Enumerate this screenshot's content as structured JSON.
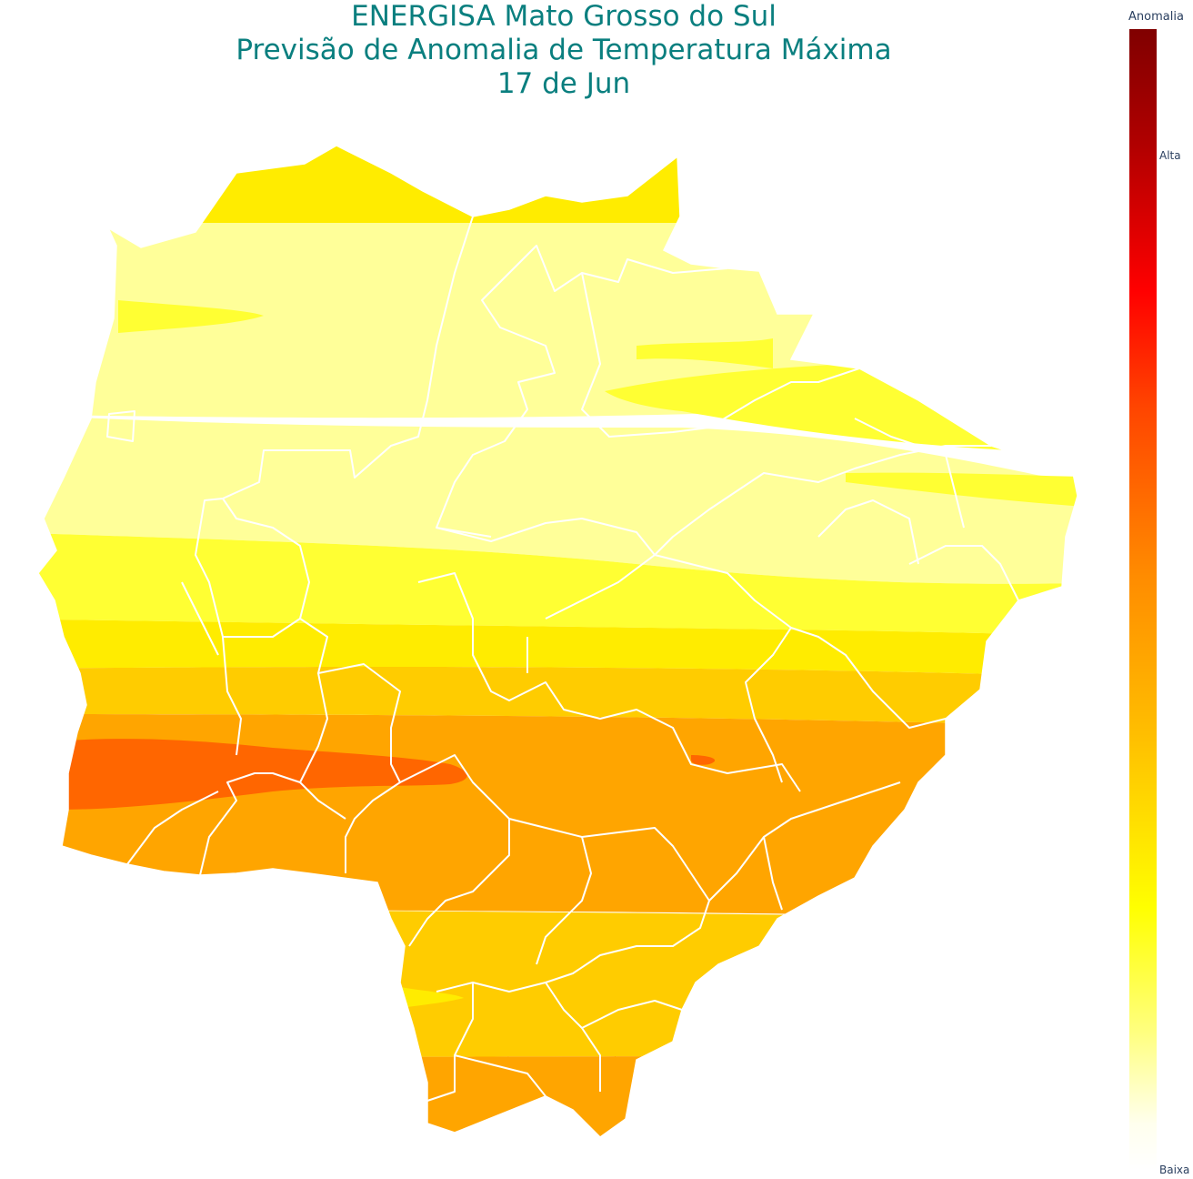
{
  "title": {
    "line1": "ENERGISA Mato Grosso do Sul",
    "line2": "Previsão de Anomalia de Temperatura Máxima",
    "line3": "17 de Jun"
  },
  "legend": {
    "title": "Anomalia",
    "high_label": "Alta",
    "low_label": "Baixa",
    "colorscale": [
      "#800000",
      "#b00000",
      "#ff0000",
      "#ff4400",
      "#ff8c00",
      "#ffbf00",
      "#ffff00",
      "#ffff80",
      "#ffffee",
      "#ffffff"
    ]
  },
  "colors": {
    "title": "#0a7f7f",
    "boundaries": "#ffffff",
    "pale_yellow": "#ffff99",
    "yellow": "#ffff33",
    "gold": "#ffec00",
    "amber": "#ffcc00",
    "orange": "#ffa500",
    "dark_orange": "#ff6600"
  }
}
